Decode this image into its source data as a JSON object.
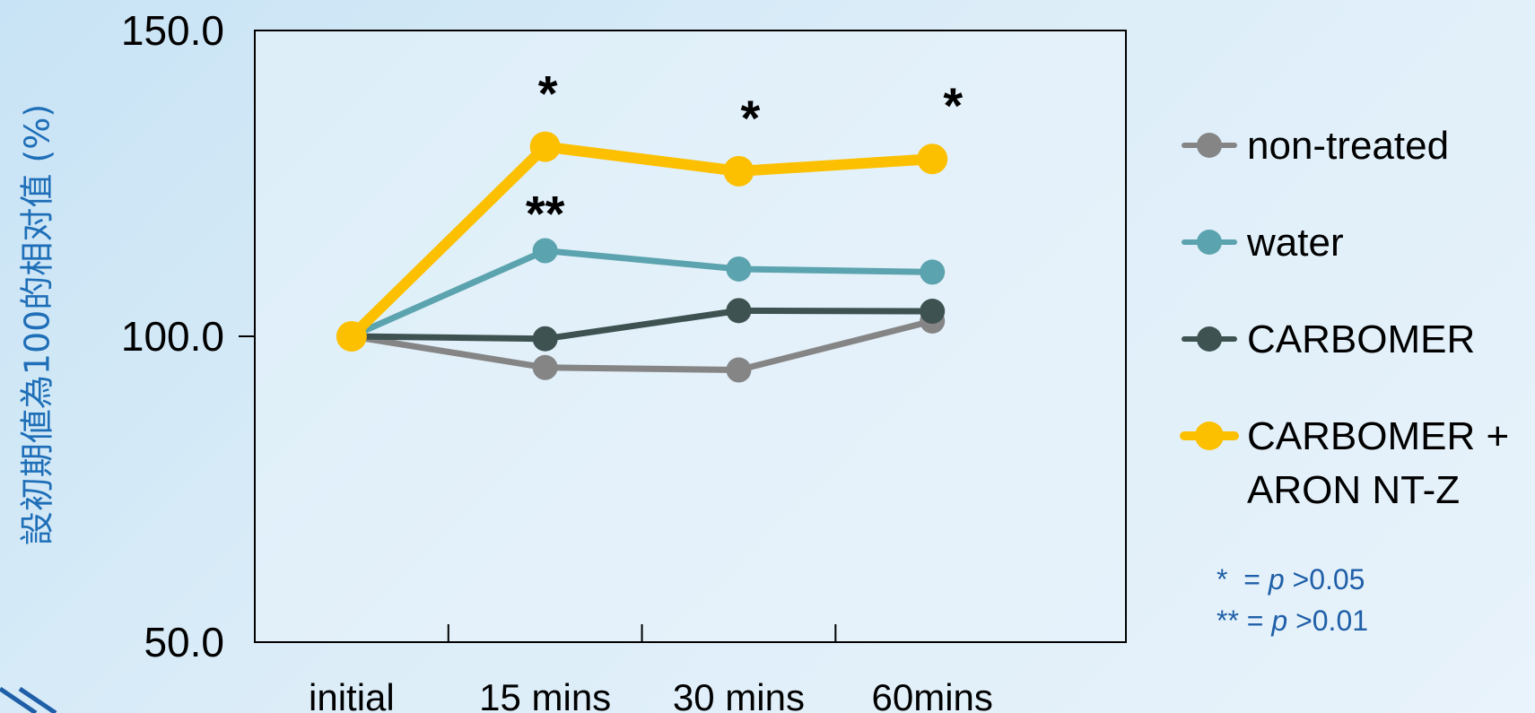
{
  "chart_data": {
    "type": "line",
    "ylabel": "設初期値為100的相对值 (%)",
    "xlabel": "",
    "categories": [
      "initial",
      "15 mins",
      "30 mins",
      "60mins"
    ],
    "ylim": [
      50,
      150
    ],
    "yticks": [
      "50.0",
      "100.0",
      "150.0"
    ],
    "ytick_values": [
      50,
      100,
      150
    ],
    "grid": false,
    "legend_position": "right",
    "series": [
      {
        "name": "non-treated",
        "color": "#858585",
        "values": [
          100,
          94.9,
          94.5,
          102.5
        ]
      },
      {
        "name": "water",
        "color": "#5ba3ae",
        "values": [
          100,
          114,
          111,
          110.5
        ]
      },
      {
        "name": "CARBOMER",
        "color": "#3e5351",
        "values": [
          100,
          99.6,
          104.2,
          104.1
        ]
      },
      {
        "name": "CARBOMER + ARON NT-Z",
        "color": "#fcc000",
        "values": [
          100,
          131,
          127,
          129
        ]
      }
    ],
    "annotations": [
      {
        "text": "*",
        "category": "15 mins",
        "series": "CARBOMER + ARON NT-Z"
      },
      {
        "text": "**",
        "category": "15 mins",
        "series": "water"
      },
      {
        "text": "*",
        "category": "30 mins",
        "series": "CARBOMER + ARON NT-Z"
      },
      {
        "text": "*",
        "category": "60mins",
        "series": "CARBOMER + ARON NT-Z"
      }
    ],
    "legend_labels": [
      [
        "non-treated"
      ],
      [
        "water"
      ],
      [
        "CARBOMER"
      ],
      [
        "CARBOMER +",
        "ARON NT-Z"
      ]
    ]
  },
  "notes": {
    "line1_stars": "*",
    "line1_eq": "  = ",
    "line1_p": "p",
    "line1_rest": " >0.05",
    "line2_stars": "**",
    "line2_eq": " = ",
    "line2_p": "p",
    "line2_rest": " >0.01"
  }
}
